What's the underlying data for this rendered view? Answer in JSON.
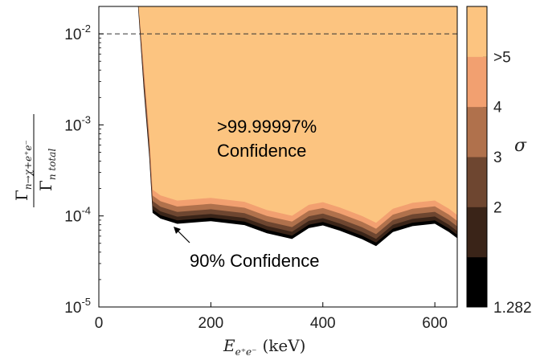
{
  "chart_data": {
    "type": "area",
    "xlabel_main": "E",
    "xlabel_sub": "e⁺e⁻",
    "xlabel_unit": "(keV)",
    "ylabel_num_main": "Γ",
    "ylabel_num_sub": "n→χ+e⁺e⁻",
    "ylabel_den_main": "Γ",
    "ylabel_den_sub": "n total",
    "xlim": [
      0,
      640
    ],
    "ylim": [
      1e-05,
      0.02
    ],
    "yscale": "log",
    "x_ticks": [
      {
        "value": 0,
        "label": "0"
      },
      {
        "value": 200,
        "label": "200"
      },
      {
        "value": 400,
        "label": "400"
      },
      {
        "value": 600,
        "label": "600"
      }
    ],
    "y_ticks": [
      {
        "value": 1e-05,
        "base": "10",
        "exp": "-5"
      },
      {
        "value": 0.0001,
        "base": "10",
        "exp": "-4"
      },
      {
        "value": 0.001,
        "base": "10",
        "exp": "-3"
      },
      {
        "value": 0.01,
        "base": "10",
        "exp": "-2"
      }
    ],
    "dashed_line_y": 0.01,
    "boundary_90": {
      "x": [
        70,
        80,
        90,
        96,
        110,
        140,
        200,
        260,
        300,
        345,
        375,
        400,
        430,
        470,
        495,
        525,
        560,
        600,
        625,
        640
      ],
      "y": [
        0.02,
        0.0025,
        0.00045,
        0.000108,
        9.35e-05,
        8.19e-05,
        8.77e-05,
        7.94e-05,
        6.45e-05,
        5.58e-05,
        7.35e-05,
        7.87e-05,
        6.89e-05,
        5.56e-05,
        4.67e-05,
        6.66e-05,
        7.73e-05,
        8.21e-05,
        6.68e-05,
        5.68e-05
      ]
    },
    "sigma_bands": [
      {
        "sigma_label": "1.282",
        "factor": 1.0,
        "color": "#000000"
      },
      {
        "sigma_label": "2",
        "factor": 1.09,
        "color": "#3a2418"
      },
      {
        "sigma_label": "3",
        "factor": 1.2,
        "color": "#6e4630"
      },
      {
        "sigma_label": "4",
        "factor": 1.35,
        "color": "#b0714c"
      },
      {
        "sigma_label": ">5",
        "factor": 1.55,
        "color": "#f2a070"
      }
    ],
    "fill_color": "#fcc480",
    "colorbar": {
      "label": "σ",
      "segments": [
        {
          "label": "1.282",
          "color": "#000000"
        },
        {
          "label": "2",
          "color": "#3a2418"
        },
        {
          "label": "3",
          "color": "#6e4630"
        },
        {
          "label": "4",
          "color": "#b0714c"
        },
        {
          "label": ">5",
          "color": "#f2a070"
        },
        {
          "label": "",
          "color": "#fcc480"
        }
      ]
    },
    "annotations": {
      "confidence_high_line1": ">99.99997%",
      "confidence_high_line2": "Confidence",
      "confidence_90": "90% Confidence"
    }
  }
}
